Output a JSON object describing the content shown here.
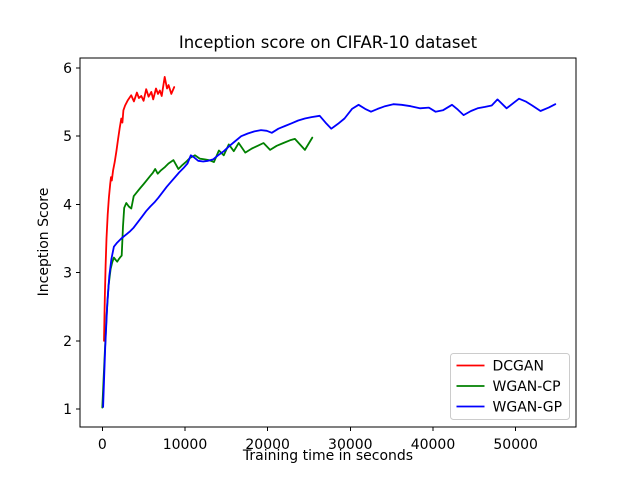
{
  "title": "Inception score on CIFAR-10 dataset",
  "xlabel": "Training time in seconds",
  "ylabel": "Inception Score",
  "chart_data": {
    "type": "line",
    "title": "Inception score on CIFAR-10 dataset",
    "xlabel": "Training time in seconds",
    "ylabel": "Inception Score",
    "xlim": [
      -2700,
      57300
    ],
    "ylim": [
      0.736,
      6.147
    ],
    "xticks": [
      0,
      10000,
      20000,
      30000,
      40000,
      50000
    ],
    "yticks": [
      1,
      2,
      3,
      4,
      5,
      6
    ],
    "grid": false,
    "legend_position": "lower right",
    "background": "#ffffff",
    "spine_color": "#000000",
    "legend_border_color": "#cccccc",
    "series": [
      {
        "name": "DCGAN",
        "color": "#ff0000",
        "points": [
          [
            200,
            2.0
          ],
          [
            300,
            2.62
          ],
          [
            400,
            3.1
          ],
          [
            500,
            3.5
          ],
          [
            650,
            3.85
          ],
          [
            800,
            4.1
          ],
          [
            950,
            4.3
          ],
          [
            1050,
            4.4
          ],
          [
            1150,
            4.35
          ],
          [
            1300,
            4.5
          ],
          [
            1500,
            4.62
          ],
          [
            1700,
            4.78
          ],
          [
            1900,
            4.95
          ],
          [
            2100,
            5.12
          ],
          [
            2300,
            5.26
          ],
          [
            2430,
            5.2
          ],
          [
            2550,
            5.38
          ],
          [
            2750,
            5.45
          ],
          [
            3090,
            5.53
          ],
          [
            3490,
            5.6
          ],
          [
            3820,
            5.51
          ],
          [
            4180,
            5.64
          ],
          [
            4420,
            5.56
          ],
          [
            4710,
            5.59
          ],
          [
            4990,
            5.52
          ],
          [
            5310,
            5.69
          ],
          [
            5600,
            5.58
          ],
          [
            5920,
            5.65
          ],
          [
            6160,
            5.54
          ],
          [
            6490,
            5.7
          ],
          [
            6730,
            5.62
          ],
          [
            6970,
            5.67
          ],
          [
            7180,
            5.59
          ],
          [
            7540,
            5.87
          ],
          [
            7820,
            5.7
          ],
          [
            8020,
            5.75
          ],
          [
            8340,
            5.62
          ],
          [
            8700,
            5.72
          ]
        ]
      },
      {
        "name": "WGAN-CP",
        "color": "#008000",
        "points": [
          [
            0,
            1.02
          ],
          [
            250,
            1.7
          ],
          [
            500,
            2.35
          ],
          [
            750,
            2.8
          ],
          [
            1000,
            3.05
          ],
          [
            1200,
            3.15
          ],
          [
            1400,
            3.22
          ],
          [
            1600,
            3.19
          ],
          [
            1800,
            3.16
          ],
          [
            2000,
            3.2
          ],
          [
            2200,
            3.23
          ],
          [
            2350,
            3.25
          ],
          [
            2500,
            3.68
          ],
          [
            2650,
            3.95
          ],
          [
            2900,
            4.02
          ],
          [
            3200,
            3.97
          ],
          [
            3500,
            3.94
          ],
          [
            3800,
            4.12
          ],
          [
            4200,
            4.18
          ],
          [
            4600,
            4.24
          ],
          [
            5000,
            4.3
          ],
          [
            5400,
            4.36
          ],
          [
            5800,
            4.42
          ],
          [
            6100,
            4.46
          ],
          [
            6400,
            4.52
          ],
          [
            6700,
            4.45
          ],
          [
            7100,
            4.5
          ],
          [
            7600,
            4.55
          ],
          [
            8000,
            4.6
          ],
          [
            8600,
            4.65
          ],
          [
            9200,
            4.52
          ],
          [
            9700,
            4.58
          ],
          [
            10100,
            4.62
          ],
          [
            10600,
            4.68
          ],
          [
            11200,
            4.72
          ],
          [
            11800,
            4.67
          ],
          [
            12400,
            4.66
          ],
          [
            12900,
            4.65
          ],
          [
            13500,
            4.62
          ],
          [
            14100,
            4.79
          ],
          [
            14700,
            4.72
          ],
          [
            15300,
            4.88
          ],
          [
            15900,
            4.78
          ],
          [
            16500,
            4.9
          ],
          [
            17300,
            4.76
          ],
          [
            18100,
            4.82
          ],
          [
            18800,
            4.86
          ],
          [
            19500,
            4.9
          ],
          [
            20300,
            4.8
          ],
          [
            21100,
            4.86
          ],
          [
            21900,
            4.9
          ],
          [
            22700,
            4.94
          ],
          [
            23300,
            4.96
          ],
          [
            24500,
            4.8
          ],
          [
            25400,
            4.98
          ]
        ]
      },
      {
        "name": "WGAN-GP",
        "color": "#0000ff",
        "points": [
          [
            100,
            1.03
          ],
          [
            350,
            1.9
          ],
          [
            600,
            2.55
          ],
          [
            850,
            2.95
          ],
          [
            1100,
            3.2
          ],
          [
            1400,
            3.38
          ],
          [
            1800,
            3.44
          ],
          [
            2300,
            3.5
          ],
          [
            2800,
            3.55
          ],
          [
            3300,
            3.6
          ],
          [
            3800,
            3.66
          ],
          [
            4300,
            3.74
          ],
          [
            4800,
            3.82
          ],
          [
            5300,
            3.9
          ],
          [
            5800,
            3.97
          ],
          [
            6300,
            4.03
          ],
          [
            6800,
            4.1
          ],
          [
            7300,
            4.18
          ],
          [
            7800,
            4.26
          ],
          [
            8300,
            4.33
          ],
          [
            8800,
            4.4
          ],
          [
            9300,
            4.47
          ],
          [
            9800,
            4.53
          ],
          [
            10300,
            4.6
          ],
          [
            10700,
            4.72
          ],
          [
            11100,
            4.69
          ],
          [
            11600,
            4.64
          ],
          [
            12200,
            4.63
          ],
          [
            12800,
            4.64
          ],
          [
            13400,
            4.66
          ],
          [
            14000,
            4.72
          ],
          [
            14700,
            4.78
          ],
          [
            15400,
            4.86
          ],
          [
            16100,
            4.93
          ],
          [
            16800,
            5.0
          ],
          [
            17600,
            5.04
          ],
          [
            18400,
            5.07
          ],
          [
            19200,
            5.09
          ],
          [
            19900,
            5.08
          ],
          [
            20500,
            5.05
          ],
          [
            21300,
            5.11
          ],
          [
            22100,
            5.15
          ],
          [
            22900,
            5.19
          ],
          [
            23700,
            5.23
          ],
          [
            24500,
            5.26
          ],
          [
            25300,
            5.28
          ],
          [
            26300,
            5.3
          ],
          [
            27000,
            5.2
          ],
          [
            27700,
            5.11
          ],
          [
            28500,
            5.18
          ],
          [
            29300,
            5.26
          ],
          [
            30200,
            5.4
          ],
          [
            31000,
            5.46
          ],
          [
            31800,
            5.4
          ],
          [
            32500,
            5.36
          ],
          [
            33300,
            5.4
          ],
          [
            34200,
            5.44
          ],
          [
            35200,
            5.47
          ],
          [
            36200,
            5.46
          ],
          [
            37300,
            5.44
          ],
          [
            38400,
            5.41
          ],
          [
            39500,
            5.42
          ],
          [
            40300,
            5.36
          ],
          [
            41200,
            5.38
          ],
          [
            42300,
            5.46
          ],
          [
            43000,
            5.39
          ],
          [
            43700,
            5.31
          ],
          [
            44600,
            5.37
          ],
          [
            45400,
            5.41
          ],
          [
            46300,
            5.43
          ],
          [
            47100,
            5.45
          ],
          [
            47800,
            5.54
          ],
          [
            48900,
            5.41
          ],
          [
            50400,
            5.55
          ],
          [
            51200,
            5.51
          ],
          [
            52000,
            5.45
          ],
          [
            53000,
            5.37
          ],
          [
            54000,
            5.42
          ],
          [
            54800,
            5.47
          ]
        ]
      }
    ]
  },
  "legend": {
    "entries": [
      {
        "label": "DCGAN",
        "color": "#ff0000"
      },
      {
        "label": "WGAN-CP",
        "color": "#008000"
      },
      {
        "label": "WGAN-GP",
        "color": "#0000ff"
      }
    ]
  }
}
